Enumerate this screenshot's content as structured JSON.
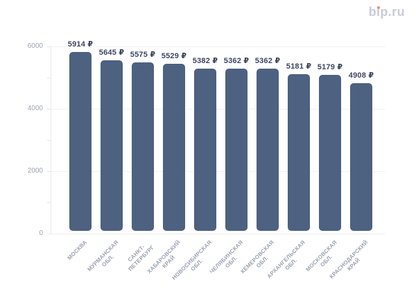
{
  "logo": {
    "text": "bip.ru",
    "color": "#c8ccd9",
    "dot_color": "#f28b71"
  },
  "colors": {
    "background": "#ffffff",
    "bar": "#4d6180",
    "value_label": "#3c4662",
    "axis_label": "#9aa2b4",
    "gridline": "#e2e5ec",
    "axis_line": "#e9ebf0",
    "logo": "#c8ccd9",
    "logo_dot": "#f28b71"
  },
  "chart_data": {
    "type": "bar",
    "title": "",
    "categories": [
      "МОСКВА",
      "МУРМАНСКАЯ ОБЛ.",
      "САНКТ-ПЕТЕРБУРГ",
      "ХАБАРОВСКИЙ КРАЙ",
      "НОВОСИБИРСКАЯ ОБЛ.",
      "ЧЕЛЯБИНСКАЯ ОБЛ.",
      "КЕМЕРОВСКАЯ ОБЛ.",
      "АРХАНГЕЛЬСКАЯ ОБЛ.",
      "МОСКОВСКАЯ ОБЛ.",
      "КРАСНОДАРСКИЙ КРАЙ"
    ],
    "categories_lines": [
      [
        "МОСКВА"
      ],
      [
        "МУРМАНСКАЯ",
        "ОБЛ."
      ],
      [
        "САНКТ-",
        "ПЕТЕРБУРГ"
      ],
      [
        "ХАБАРОВСКИЙ",
        "КРАЙ"
      ],
      [
        "НОВОСИБИРСКАЯ",
        "ОБЛ."
      ],
      [
        "ЧЕЛЯБИНСКАЯ",
        "ОБЛ."
      ],
      [
        "КЕМЕРОВСКАЯ",
        "ОБЛ."
      ],
      [
        "АРХАНГЕЛЬСКАЯ",
        "ОБЛ."
      ],
      [
        "МОСКОВСКАЯ",
        "ОБЛ."
      ],
      [
        "КРАСНОДАРСКИЙ",
        "КРАЙ"
      ]
    ],
    "values": [
      5914,
      5645,
      5575,
      5529,
      5382,
      5362,
      5362,
      5181,
      5179,
      4908
    ],
    "value_labels": [
      "5914 ₽",
      "5645 ₽",
      "5575 ₽",
      "5529 ₽",
      "5382 ₽",
      "5362 ₽",
      "5362 ₽",
      "5181 ₽",
      "5179 ₽",
      "4908 ₽"
    ],
    "currency_symbol": "₽",
    "xlabel": "",
    "ylabel": "",
    "ylim": [
      0,
      6000
    ],
    "yticks": [
      0,
      2000,
      4000,
      6000
    ],
    "y_minor_tick_step": 1000,
    "grid": "horizontal-dotted",
    "legend": "none"
  }
}
